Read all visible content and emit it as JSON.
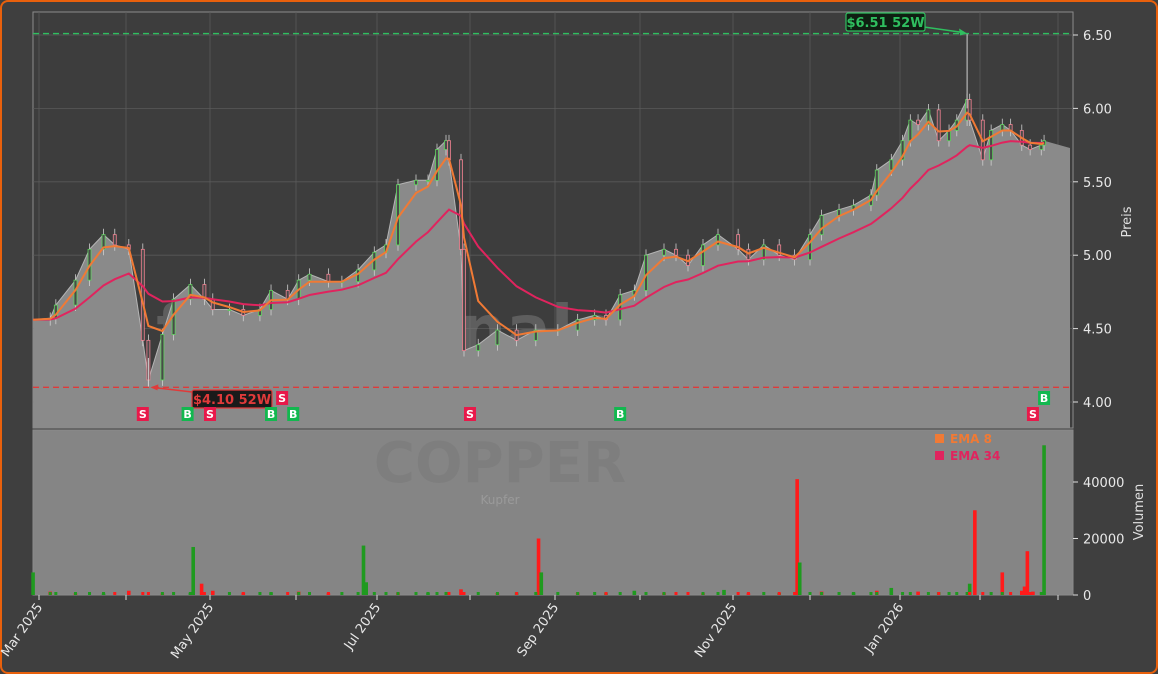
{
  "chart_data": {
    "type": "candlestick-line",
    "symbol_watermark": "COPPER",
    "subtitle_watermark": "Kupfer",
    "site_watermark": "forexsignale.trade",
    "ylabel": "Preis",
    "volume_label": "Volumen",
    "ylim": [
      3.82,
      6.66
    ],
    "yticks": [
      "4.00",
      "4.50",
      "5.00",
      "5.50",
      "6.00",
      "6.50"
    ],
    "volume_ylim": [
      0,
      58400
    ],
    "volume_ticks": [
      "0",
      "20000",
      "40000"
    ],
    "xticks": [
      {
        "date": "2025-03-01",
        "label": "Mar 2025"
      },
      {
        "date": "2025-05-01",
        "label": "May 2025"
      },
      {
        "date": "2025-07-01",
        "label": "Jul 2025"
      },
      {
        "date": "2025-09-01",
        "label": "Sep 2025"
      },
      {
        "date": "2025-11-01",
        "label": "Nov 2025"
      },
      {
        "date": "2026-01-01",
        "label": "Jan 2026"
      }
    ],
    "grid": true,
    "legend": {
      "placement": "top-right of volume panel",
      "items": [
        {
          "label": "EMA 8",
          "color": "#f07a35"
        },
        {
          "label": "EMA 34",
          "color": "#e0245e"
        }
      ]
    },
    "colors": {
      "up": "#5fd35f",
      "down": "#f08090",
      "area": "#8a8a8a",
      "volume_up": "#1f9a1f",
      "volume_down": "#ff1a1a",
      "high_line": "#2fbf5f",
      "low_line": "#e03a3a"
    },
    "high_52w": {
      "date": "2026-01-27",
      "value": 6.51,
      "label": "$6.51 52W"
    },
    "low_52w": {
      "date": "2025-04-09",
      "value": 4.1,
      "label": "$4.10 52W"
    },
    "closes": [
      [
        "2025-02-27",
        4.56
      ],
      [
        "2025-03-05",
        4.57
      ],
      [
        "2025-03-07",
        4.66
      ],
      [
        "2025-03-14",
        4.83
      ],
      [
        "2025-03-19",
        5.04
      ],
      [
        "2025-03-24",
        5.14
      ],
      [
        "2025-03-28",
        5.07
      ],
      [
        "2025-04-02",
        5.04
      ],
      [
        "2025-04-07",
        4.42
      ],
      [
        "2025-04-09",
        4.15
      ],
      [
        "2025-04-14",
        4.46
      ],
      [
        "2025-04-18",
        4.7
      ],
      [
        "2025-04-24",
        4.8
      ],
      [
        "2025-04-29",
        4.7
      ],
      [
        "2025-05-02",
        4.63
      ],
      [
        "2025-05-08",
        4.63
      ],
      [
        "2025-05-13",
        4.59
      ],
      [
        "2025-05-19",
        4.63
      ],
      [
        "2025-05-23",
        4.76
      ],
      [
        "2025-05-29",
        4.7
      ],
      [
        "2025-06-02",
        4.83
      ],
      [
        "2025-06-06",
        4.87
      ],
      [
        "2025-06-13",
        4.82
      ],
      [
        "2025-06-18",
        4.82
      ],
      [
        "2025-06-24",
        4.9
      ],
      [
        "2025-06-30",
        5.02
      ],
      [
        "2025-07-04",
        5.07
      ],
      [
        "2025-07-08",
        5.48
      ],
      [
        "2025-07-14",
        5.51
      ],
      [
        "2025-07-18",
        5.51
      ],
      [
        "2025-07-21",
        5.72
      ],
      [
        "2025-07-24",
        5.78
      ],
      [
        "2025-07-25",
        5.65
      ],
      [
        "2025-07-29",
        5.04
      ],
      [
        "2025-07-30",
        4.35
      ],
      [
        "2025-08-04",
        4.39
      ],
      [
        "2025-08-11",
        4.49
      ],
      [
        "2025-08-18",
        4.42
      ],
      [
        "2025-08-25",
        4.49
      ],
      [
        "2025-09-02",
        4.49
      ],
      [
        "2025-09-09",
        4.56
      ],
      [
        "2025-09-15",
        4.59
      ],
      [
        "2025-09-19",
        4.56
      ],
      [
        "2025-09-24",
        4.73
      ],
      [
        "2025-09-29",
        4.76
      ],
      [
        "2025-10-03",
        5.0
      ],
      [
        "2025-10-09",
        5.04
      ],
      [
        "2025-10-13",
        5.0
      ],
      [
        "2025-10-17",
        4.93
      ],
      [
        "2025-10-22",
        5.07
      ],
      [
        "2025-10-27",
        5.14
      ],
      [
        "2025-11-03",
        5.04
      ],
      [
        "2025-11-07",
        4.97
      ],
      [
        "2025-11-13",
        5.07
      ],
      [
        "2025-11-19",
        5.0
      ],
      [
        "2025-11-25",
        4.97
      ],
      [
        "2025-12-01",
        5.14
      ],
      [
        "2025-12-05",
        5.27
      ],
      [
        "2025-12-11",
        5.31
      ],
      [
        "2025-12-16",
        5.34
      ],
      [
        "2025-12-22",
        5.41
      ],
      [
        "2025-12-24",
        5.58
      ],
      [
        "2025-12-29",
        5.65
      ],
      [
        "2026-01-02",
        5.78
      ],
      [
        "2026-01-05",
        5.92
      ],
      [
        "2026-01-08",
        5.89
      ],
      [
        "2026-01-12",
        5.99
      ],
      [
        "2026-01-16",
        5.78
      ],
      [
        "2026-01-20",
        5.85
      ],
      [
        "2026-01-23",
        5.92
      ],
      [
        "2026-01-27",
        6.06
      ],
      [
        "2026-01-28",
        5.92
      ],
      [
        "2026-02-02",
        5.65
      ],
      [
        "2026-02-05",
        5.85
      ],
      [
        "2026-02-09",
        5.89
      ],
      [
        "2026-02-12",
        5.85
      ],
      [
        "2026-02-16",
        5.75
      ],
      [
        "2026-02-19",
        5.72
      ],
      [
        "2026-02-23",
        5.75
      ],
      [
        "2026-02-24",
        5.78
      ]
    ],
    "volume": [
      [
        "2025-02-27",
        8000,
        "up"
      ],
      [
        "2025-03-05",
        1200,
        "down"
      ],
      [
        "2025-03-14",
        600,
        "down"
      ],
      [
        "2025-03-24",
        500,
        "up"
      ],
      [
        "2025-04-02",
        1500,
        "down"
      ],
      [
        "2025-04-14",
        500,
        "down"
      ],
      [
        "2025-04-24",
        800,
        "up"
      ],
      [
        "2025-04-25",
        17000,
        "up"
      ],
      [
        "2025-04-28",
        4000,
        "down"
      ],
      [
        "2025-05-02",
        1500,
        "down"
      ],
      [
        "2025-05-13",
        800,
        "down"
      ],
      [
        "2025-05-23",
        900,
        "up"
      ],
      [
        "2025-06-02",
        1200,
        "down"
      ],
      [
        "2025-06-13",
        600,
        "down"
      ],
      [
        "2025-06-26",
        17500,
        "up"
      ],
      [
        "2025-06-27",
        4500,
        "up"
      ],
      [
        "2025-07-08",
        900,
        "down"
      ],
      [
        "2025-07-18",
        800,
        "up"
      ],
      [
        "2025-07-29",
        2000,
        "down"
      ],
      [
        "2025-08-11",
        700,
        "down"
      ],
      [
        "2025-08-18",
        900,
        "up"
      ],
      [
        "2025-08-26",
        20000,
        "down"
      ],
      [
        "2025-08-27",
        8000,
        "up"
      ],
      [
        "2025-09-09",
        900,
        "down"
      ],
      [
        "2025-09-19",
        800,
        "up"
      ],
      [
        "2025-09-29",
        1500,
        "up"
      ],
      [
        "2025-10-09",
        800,
        "down"
      ],
      [
        "2025-10-22",
        600,
        "down"
      ],
      [
        "2025-10-29",
        1800,
        "up"
      ],
      [
        "2025-11-07",
        600,
        "down"
      ],
      [
        "2025-11-19",
        700,
        "up"
      ],
      [
        "2025-11-26",
        41000,
        "down"
      ],
      [
        "2025-11-27",
        11500,
        "up"
      ],
      [
        "2025-12-05",
        1200,
        "down"
      ],
      [
        "2025-12-16",
        900,
        "up"
      ],
      [
        "2025-12-24",
        1500,
        "down"
      ],
      [
        "2025-12-29",
        2500,
        "up"
      ],
      [
        "2026-01-08",
        1200,
        "down"
      ],
      [
        "2026-01-16",
        1000,
        "up"
      ],
      [
        "2026-01-28",
        4000,
        "up"
      ],
      [
        "2026-01-30",
        30000,
        "down"
      ],
      [
        "2026-02-09",
        8000,
        "down"
      ],
      [
        "2026-02-16",
        1500,
        "down"
      ],
      [
        "2026-02-17",
        3000,
        "down"
      ],
      [
        "2026-02-18",
        15500,
        "down"
      ],
      [
        "2026-02-20",
        1200,
        "down"
      ],
      [
        "2026-02-24",
        53000,
        "up"
      ]
    ],
    "signals": [
      {
        "date": "2025-04-07",
        "type": "S"
      },
      {
        "date": "2025-04-23",
        "type": "B"
      },
      {
        "date": "2025-05-01",
        "type": "S"
      },
      {
        "date": "2025-05-23",
        "type": "B"
      },
      {
        "date": "2025-05-27",
        "type": "S"
      },
      {
        "date": "2025-05-31",
        "type": "B"
      },
      {
        "date": "2025-08-01",
        "type": "S"
      },
      {
        "date": "2025-09-24",
        "type": "B"
      },
      {
        "date": "2026-02-20",
        "type": "S"
      },
      {
        "date": "2026-02-24",
        "type": "B"
      }
    ]
  }
}
